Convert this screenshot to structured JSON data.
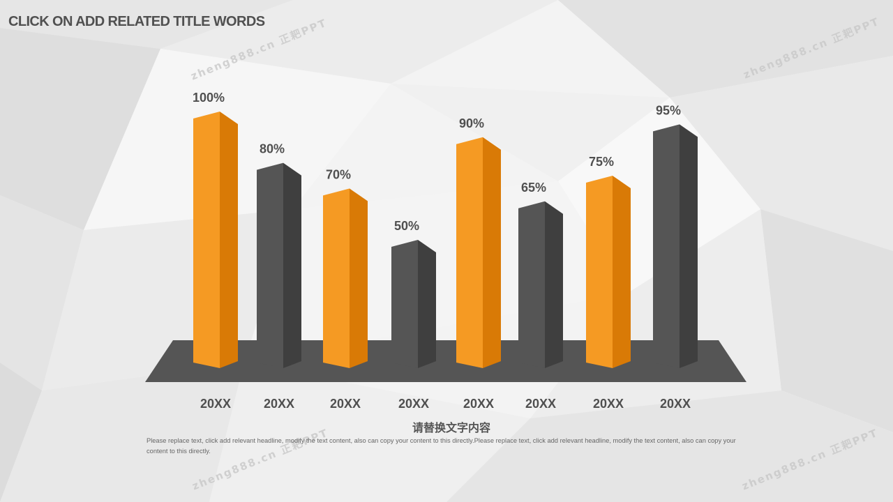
{
  "title": "CLICK ON ADD RELATED TITLE WORDS",
  "subtitle": "请替换文字内容",
  "body_text": "Please replace text, click add relevant headline, modify the text content, also can copy your content to this directly.Please replace text, click add relevant headline, modify the text content, also can copy your content to this directly.",
  "watermark": "zheng888.cn 正耙PPT",
  "colors": {
    "orange": "#f59a23",
    "orange_side": "#d97a06",
    "gray": "#555555",
    "gray_side": "#3f3f3f",
    "base": "#555555",
    "text": "#505050"
  },
  "chart_data": {
    "type": "bar",
    "title": "",
    "xlabel": "",
    "ylabel": "",
    "categories": [
      "20XX",
      "20XX",
      "20XX",
      "20XX",
      "20XX",
      "20XX",
      "20XX",
      "20XX"
    ],
    "values": [
      100,
      80,
      70,
      50,
      90,
      65,
      75,
      95
    ],
    "value_labels": [
      "100%",
      "80%",
      "70%",
      "50%",
      "90%",
      "65%",
      "75%",
      "95%"
    ],
    "bar_colors": [
      "orange",
      "gray",
      "orange",
      "gray",
      "orange",
      "gray",
      "orange",
      "gray"
    ],
    "ylim": [
      0,
      100
    ],
    "grid": false,
    "legend": false
  }
}
